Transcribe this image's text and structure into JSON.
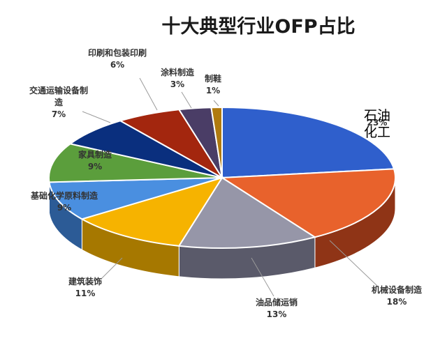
{
  "chart_data": {
    "type": "pie",
    "title": "十大典型行业OFP占比",
    "slices": [
      {
        "label": "石油化工",
        "pct_label": "23%",
        "value": 23,
        "color": "#2f5fcc",
        "side": "#1f3f8a"
      },
      {
        "label": "机械设备制造",
        "pct_label": "18%",
        "value": 18,
        "color": "#e8622c",
        "side": "#8f3416"
      },
      {
        "label": "油品储运销",
        "pct_label": "13%",
        "value": 13,
        "color": "#9696a8",
        "side": "#5a5a6a"
      },
      {
        "label": "建筑装饰",
        "pct_label": "11%",
        "value": 11,
        "color": "#f6b300",
        "side": "#a67800"
      },
      {
        "label": "基础化学原料制造",
        "pct_label": "9%",
        "value": 9,
        "color": "#4a8fe0",
        "side": "#2c5b96"
      },
      {
        "label": "家具制造",
        "pct_label": "9%",
        "value": 9,
        "color": "#5b9e3c",
        "side": "#3a6a24"
      },
      {
        "label": "交通运输设备制造",
        "pct_label": "7%",
        "value": 7,
        "color": "#0a2f7e",
        "side": "#061d4f"
      },
      {
        "label": "印刷和包装印刷",
        "pct_label": "6%",
        "value": 6,
        "color": "#a3260e",
        "side": "#6b1806"
      },
      {
        "label": "涂料制造",
        "pct_label": "3%",
        "value": 3,
        "color": "#4a3d66",
        "side": "#2e2542"
      },
      {
        "label": "制鞋",
        "pct_label": "1%",
        "value": 1,
        "color": "#b07a10",
        "side": "#6f4c08"
      }
    ]
  }
}
